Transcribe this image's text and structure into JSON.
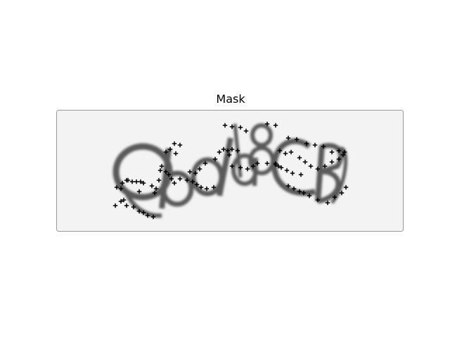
{
  "figure": {
    "title": "Mask"
  },
  "image": {
    "captcha_text": "Qbd8CB",
    "background_color": "#f3f3f3",
    "ink_color": "#5a5a5a",
    "marker_color": "#000000",
    "marker_style": "plus"
  }
}
